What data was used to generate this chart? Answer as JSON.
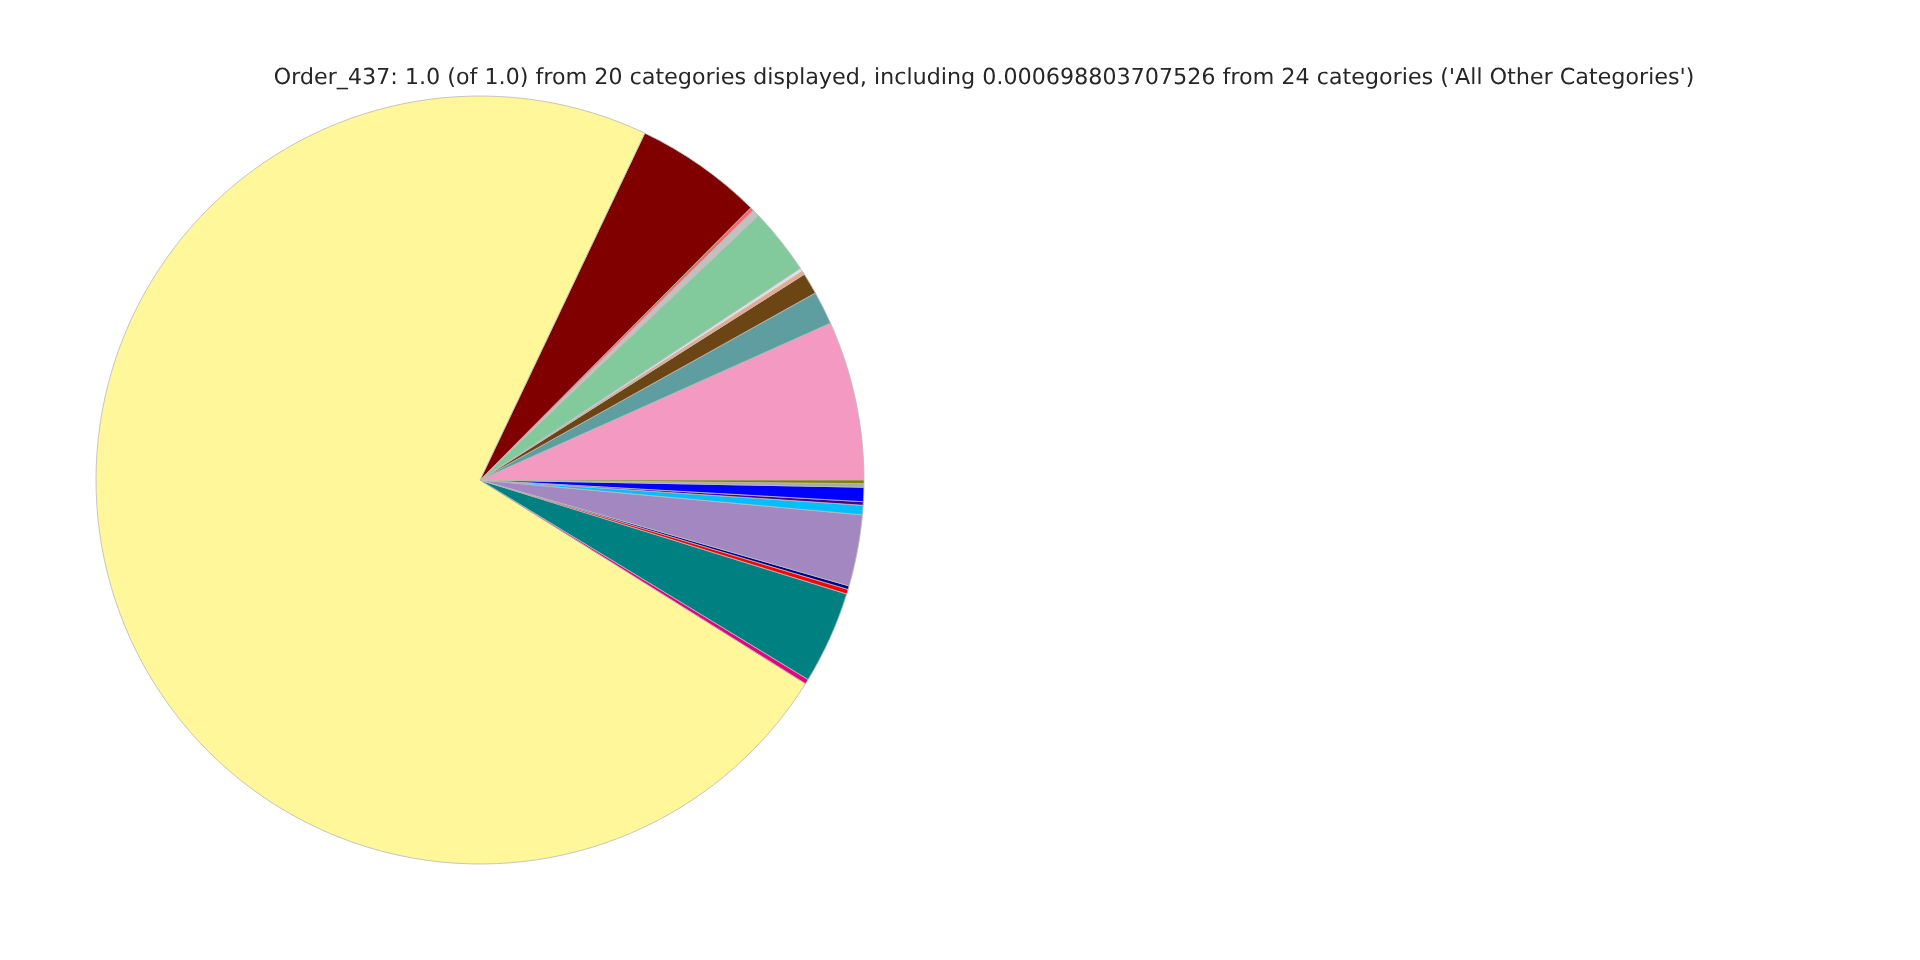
{
  "chart_data": {
    "type": "pie",
    "title": "Order_437: 1.0 (of 1.0) from 20 categories displayed, including 0.000698803707526 from 24 categories ('All Other Categories')",
    "categories": [
      null,
      null,
      null,
      null,
      null,
      null,
      null,
      null,
      null,
      null,
      null,
      null,
      null,
      null,
      null,
      null,
      null,
      null,
      null,
      null
    ],
    "values": [
      6.7,
      1.4,
      0.9,
      0.15,
      0.15,
      2.8,
      0.3,
      0.15,
      5.4,
      73.2,
      0.2,
      3.9,
      0.2,
      0.15,
      3.0,
      0.4,
      0.15,
      0.6,
      0.15,
      0.15
    ],
    "colors": [
      "#f49ac2",
      "#5f9ea0",
      "#6b4513",
      "#f4a582",
      "#e0e0e0",
      "#82ca9c",
      "#c0c0c0",
      "#ff6666",
      "#800000",
      "#fff799",
      "#e6007e",
      "#008080",
      "#ff0000",
      "#00008b",
      "#a387c0",
      "#00bfff",
      "#4b0082",
      "#0000ff",
      "#a9a9a9",
      "#808000"
    ]
  }
}
